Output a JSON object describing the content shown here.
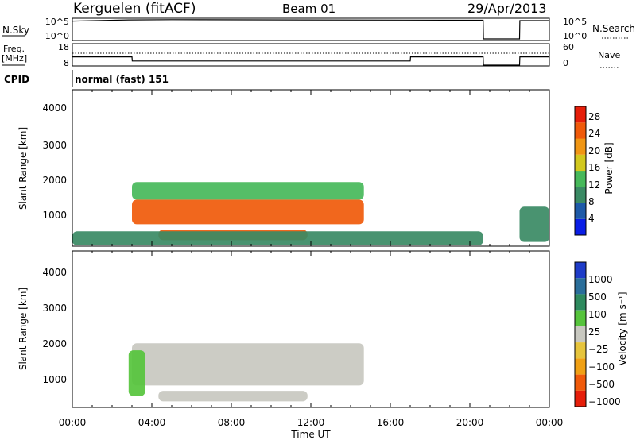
{
  "header": {
    "station": "Kerguelen (fitACF)",
    "beam": "Beam 01",
    "date": "29/Apr/2013"
  },
  "top_panel": {
    "left_label": "N.Sky",
    "right_label": "N.Search",
    "left_ticks": [
      "10^5",
      "10^0"
    ],
    "right_ticks": [
      "10^5",
      "10^0"
    ]
  },
  "freq_panel": {
    "left_label_1": "Freq.",
    "left_label_2": "[MHz]",
    "right_label": "Nave",
    "left_ticks": [
      "18",
      "8"
    ],
    "right_ticks": [
      "60",
      "0"
    ]
  },
  "cpid": {
    "label": "CPID",
    "value": "normal (fast) 151"
  },
  "x_axis": {
    "label": "Time UT",
    "ticks": [
      "00:00",
      "04:00",
      "08:00",
      "12:00",
      "16:00",
      "20:00",
      "00:00"
    ]
  },
  "power_panel": {
    "ylabel": "Slant Range [km]",
    "yticks": [
      "1000",
      "2000",
      "3000",
      "4000"
    ],
    "colorbar_label": "Power [dB]",
    "colorbar_ticks": [
      "4",
      "8",
      "12",
      "16",
      "20",
      "24",
      "28"
    ],
    "colors": [
      "#0a1ee6",
      "#1e5aa8",
      "#3a8a64",
      "#46b85a",
      "#d2c81e",
      "#f09614",
      "#f05a0a",
      "#e61e0a"
    ]
  },
  "velocity_panel": {
    "ylabel": "Slant Range [km]",
    "yticks": [
      "1000",
      "2000",
      "3000",
      "4000"
    ],
    "colorbar_label": "Velocity [m s⁻¹]",
    "colorbar_ticks": [
      "1000",
      "500",
      "100",
      "25",
      "−25",
      "−100",
      "−500",
      "−1000"
    ],
    "colors": [
      "#1e3cc8",
      "#2a6e9a",
      "#2e8a5e",
      "#56c43c",
      "#c8c8c0",
      "#e6c43c",
      "#f0a014",
      "#f05a0a",
      "#e61e0a"
    ]
  },
  "chart_data": [
    {
      "type": "line",
      "title": "N.Sky / N.Search",
      "x": [
        "00:00",
        "02:50",
        "05:00",
        "20:40",
        "20:41",
        "22:30",
        "22:31",
        "24:00"
      ],
      "series": [
        {
          "name": "N.Sky",
          "values": [
            30000,
            60000,
            70000,
            50000,
            1,
            1,
            40000,
            40000
          ]
        }
      ],
      "ylim": [
        1,
        100000
      ],
      "yscale": "log"
    },
    {
      "type": "line",
      "title": "Freq.",
      "x": [
        "00:00",
        "03:00",
        "03:01",
        "17:00",
        "17:01",
        "20:40",
        "20:41",
        "22:30",
        "22:31",
        "24:00"
      ],
      "series": [
        {
          "name": "Freq.",
          "values": [
            12,
            12,
            10,
            10,
            12,
            12,
            8,
            8,
            12,
            12
          ]
        }
      ],
      "ylim": [
        8,
        18
      ]
    },
    {
      "type": "heatmap",
      "title": "Power [dB]",
      "x_range": [
        "00:00",
        "24:00"
      ],
      "ylabel": "Slant Range [km]",
      "ylim": [
        200,
        4600
      ],
      "zlim": [
        0,
        30
      ],
      "regions": [
        {
          "start": "03:00",
          "end": "14:40",
          "range_low": 800,
          "range_high": 1500,
          "value": 26
        },
        {
          "start": "03:00",
          "end": "14:40",
          "range_low": 1500,
          "range_high": 2000,
          "value": 15
        },
        {
          "start": "04:20",
          "end": "11:50",
          "range_low": 350,
          "range_high": 650,
          "value": 26
        },
        {
          "start": "00:00",
          "end": "20:40",
          "range_low": 200,
          "range_high": 600,
          "value": 8
        },
        {
          "start": "22:30",
          "end": "24:00",
          "range_low": 300,
          "range_high": 1300,
          "value": 9
        }
      ]
    },
    {
      "type": "heatmap",
      "title": "Velocity [m s⁻¹]",
      "x_range": [
        "00:00",
        "24:00"
      ],
      "ylabel": "Slant Range [km]",
      "ylim": [
        200,
        4600
      ],
      "zlim": [
        -1000,
        1000
      ],
      "regions": [
        {
          "start": "03:00",
          "end": "14:40",
          "range_low": 800,
          "range_high": 2000,
          "value": 0
        },
        {
          "start": "04:20",
          "end": "11:50",
          "range_low": 350,
          "range_high": 650,
          "value": 0
        },
        {
          "start": "02:50",
          "end": "03:40",
          "range_low": 500,
          "range_high": 1800,
          "value": 80
        }
      ]
    }
  ]
}
